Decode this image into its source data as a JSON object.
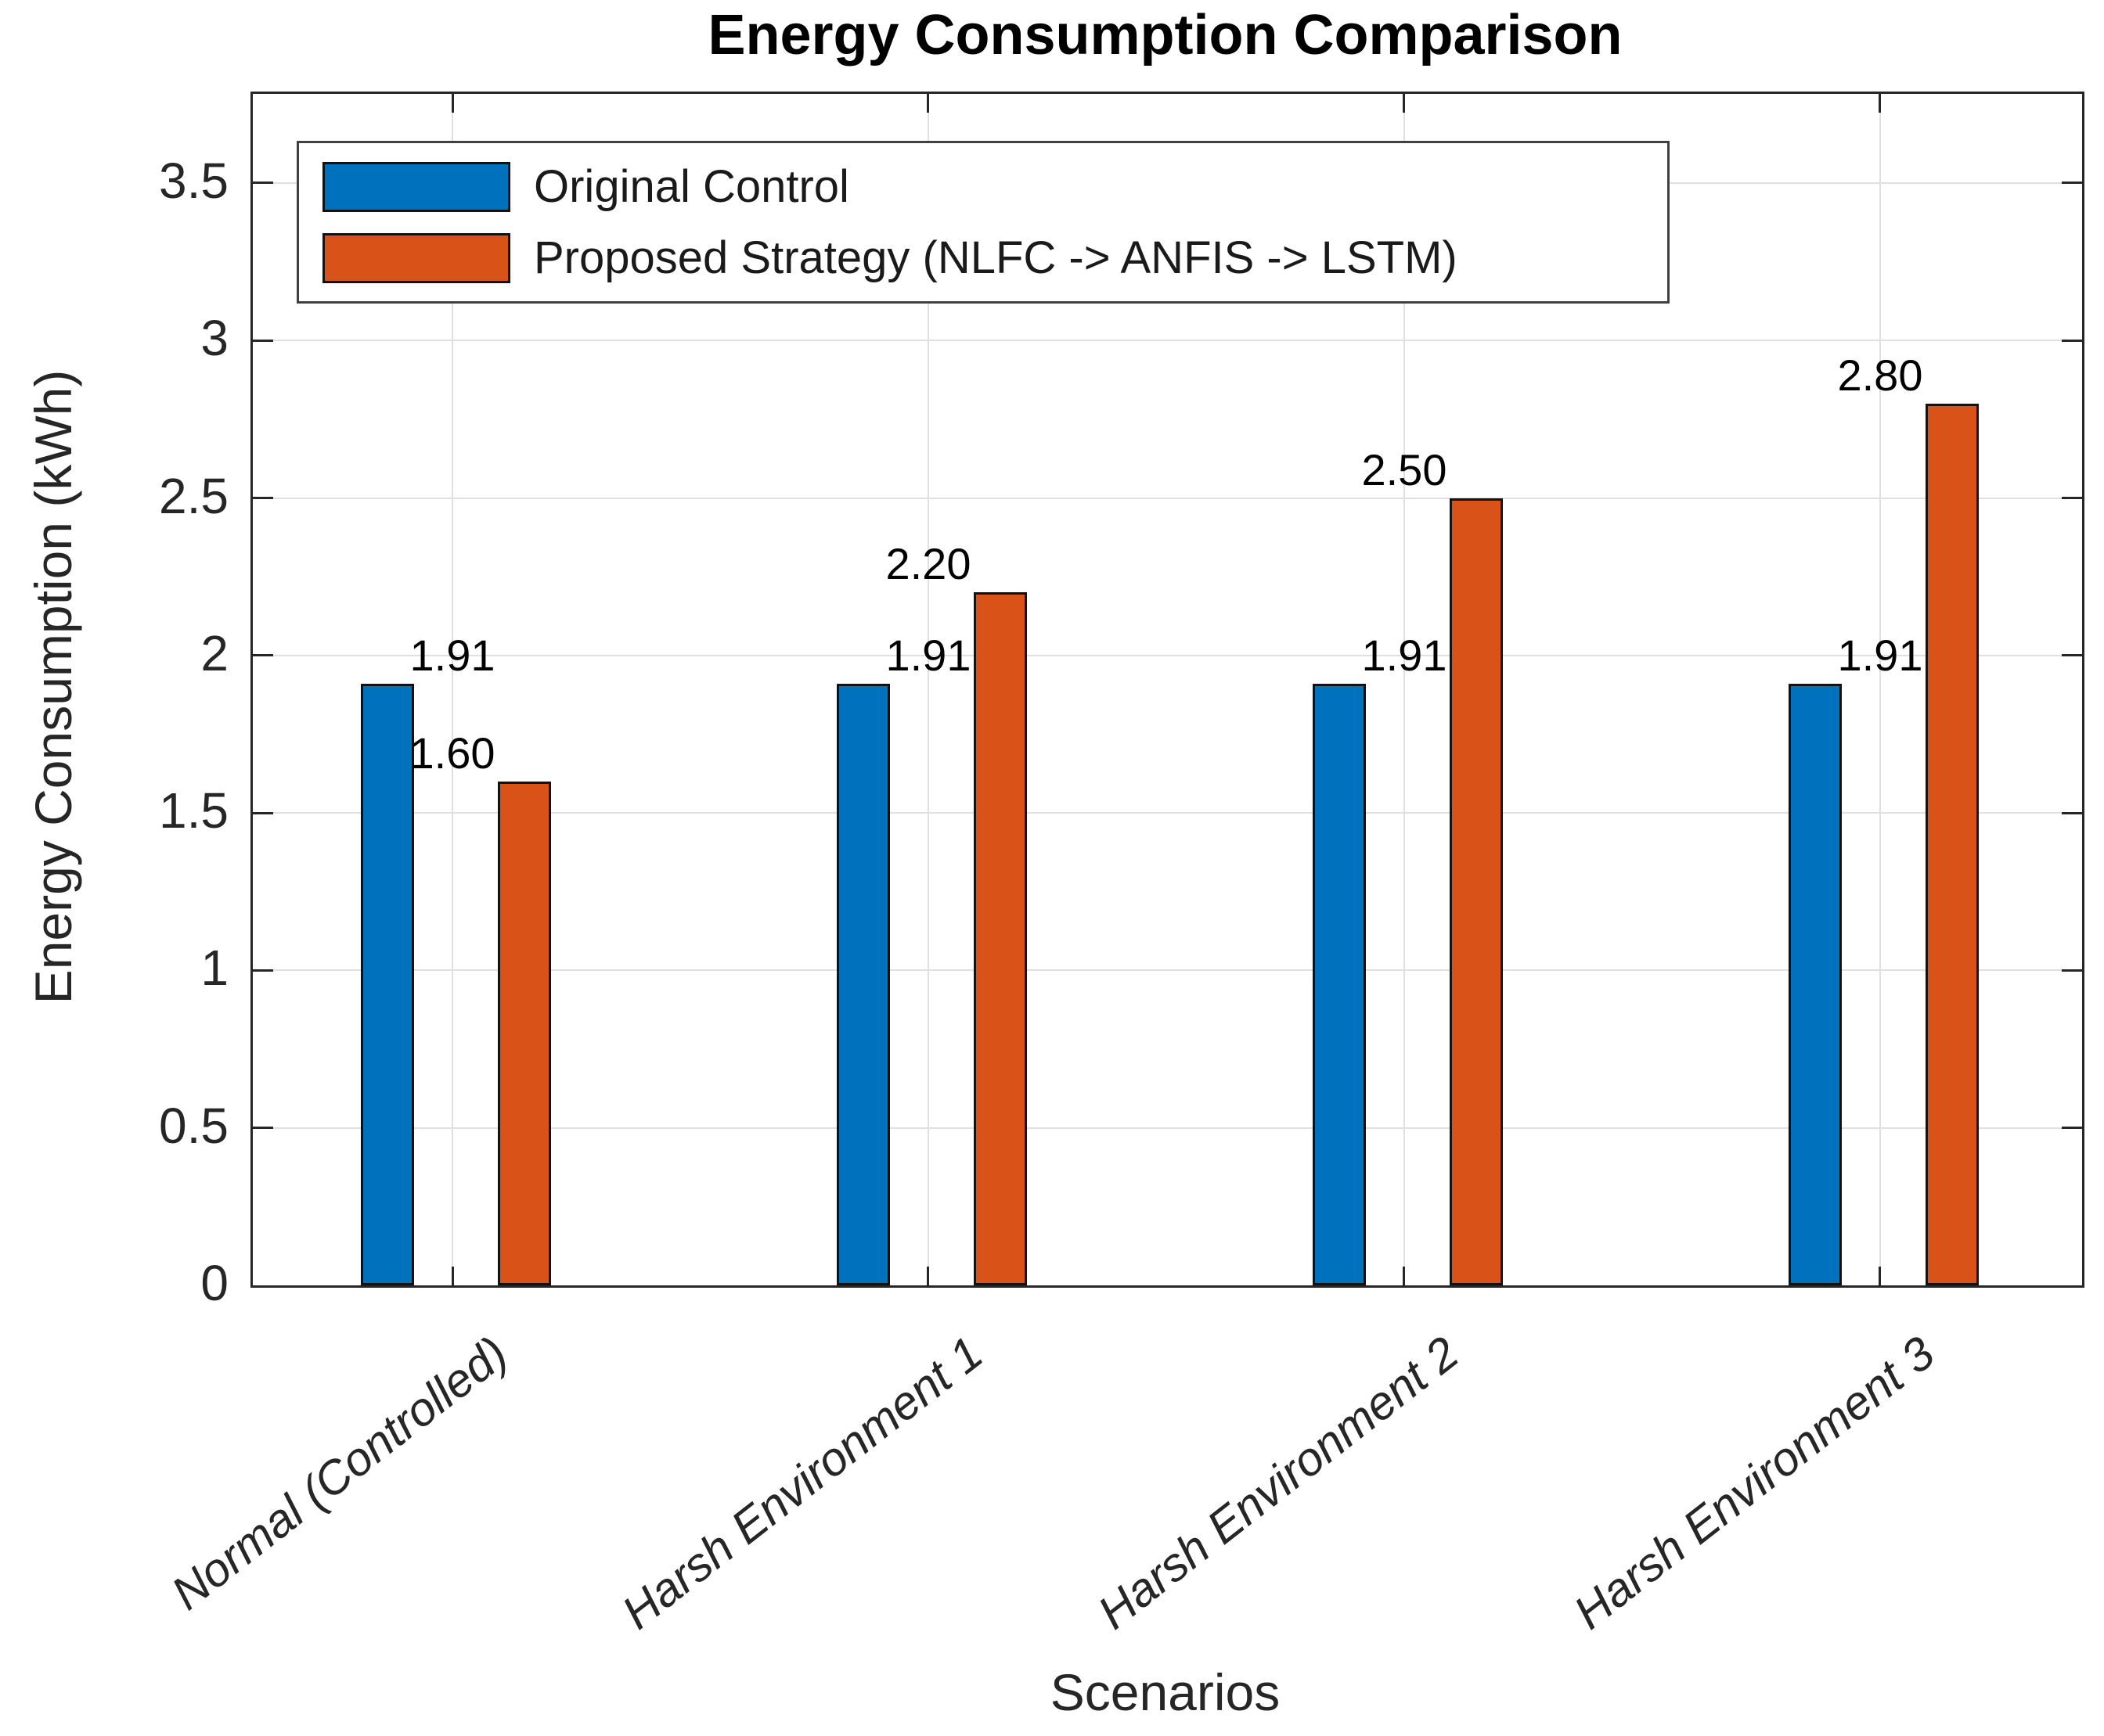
{
  "chart_data": {
    "type": "bar",
    "title": "Energy Consumption Comparison",
    "xlabel": "Scenarios",
    "ylabel": "Energy Consumption (kWh)",
    "categories": [
      "Normal (Controlled)",
      "Harsh Environment 1",
      "Harsh Environment 2",
      "Harsh Environment 3"
    ],
    "series": [
      {
        "name": "Original Control",
        "color": "#0072BD",
        "values": [
          1.91,
          1.91,
          1.91,
          1.91
        ],
        "value_labels": [
          "1.91",
          "1.91",
          "1.91",
          "1.91"
        ]
      },
      {
        "name": "Proposed Strategy (NLFC -> ANFIS -> LSTM)",
        "color": "#D95319",
        "values": [
          1.6,
          2.2,
          2.5,
          2.8
        ],
        "value_labels": [
          "1.60",
          "2.20",
          "2.50",
          "2.80"
        ]
      }
    ],
    "y_ticks": [
      0,
      0.5,
      1,
      1.5,
      2,
      2.5,
      3,
      3.5
    ],
    "y_tick_labels": [
      "0",
      "0.5",
      "1",
      "1.5",
      "2",
      "2.5",
      "3",
      "3.5"
    ],
    "ylim": [
      0,
      3.783
    ],
    "grid": true,
    "legend_position": "top-left"
  },
  "colors": {
    "axis": "#262626",
    "grid": "#e0e0e0",
    "bar_edge": "#121212",
    "background": "#ffffff"
  }
}
